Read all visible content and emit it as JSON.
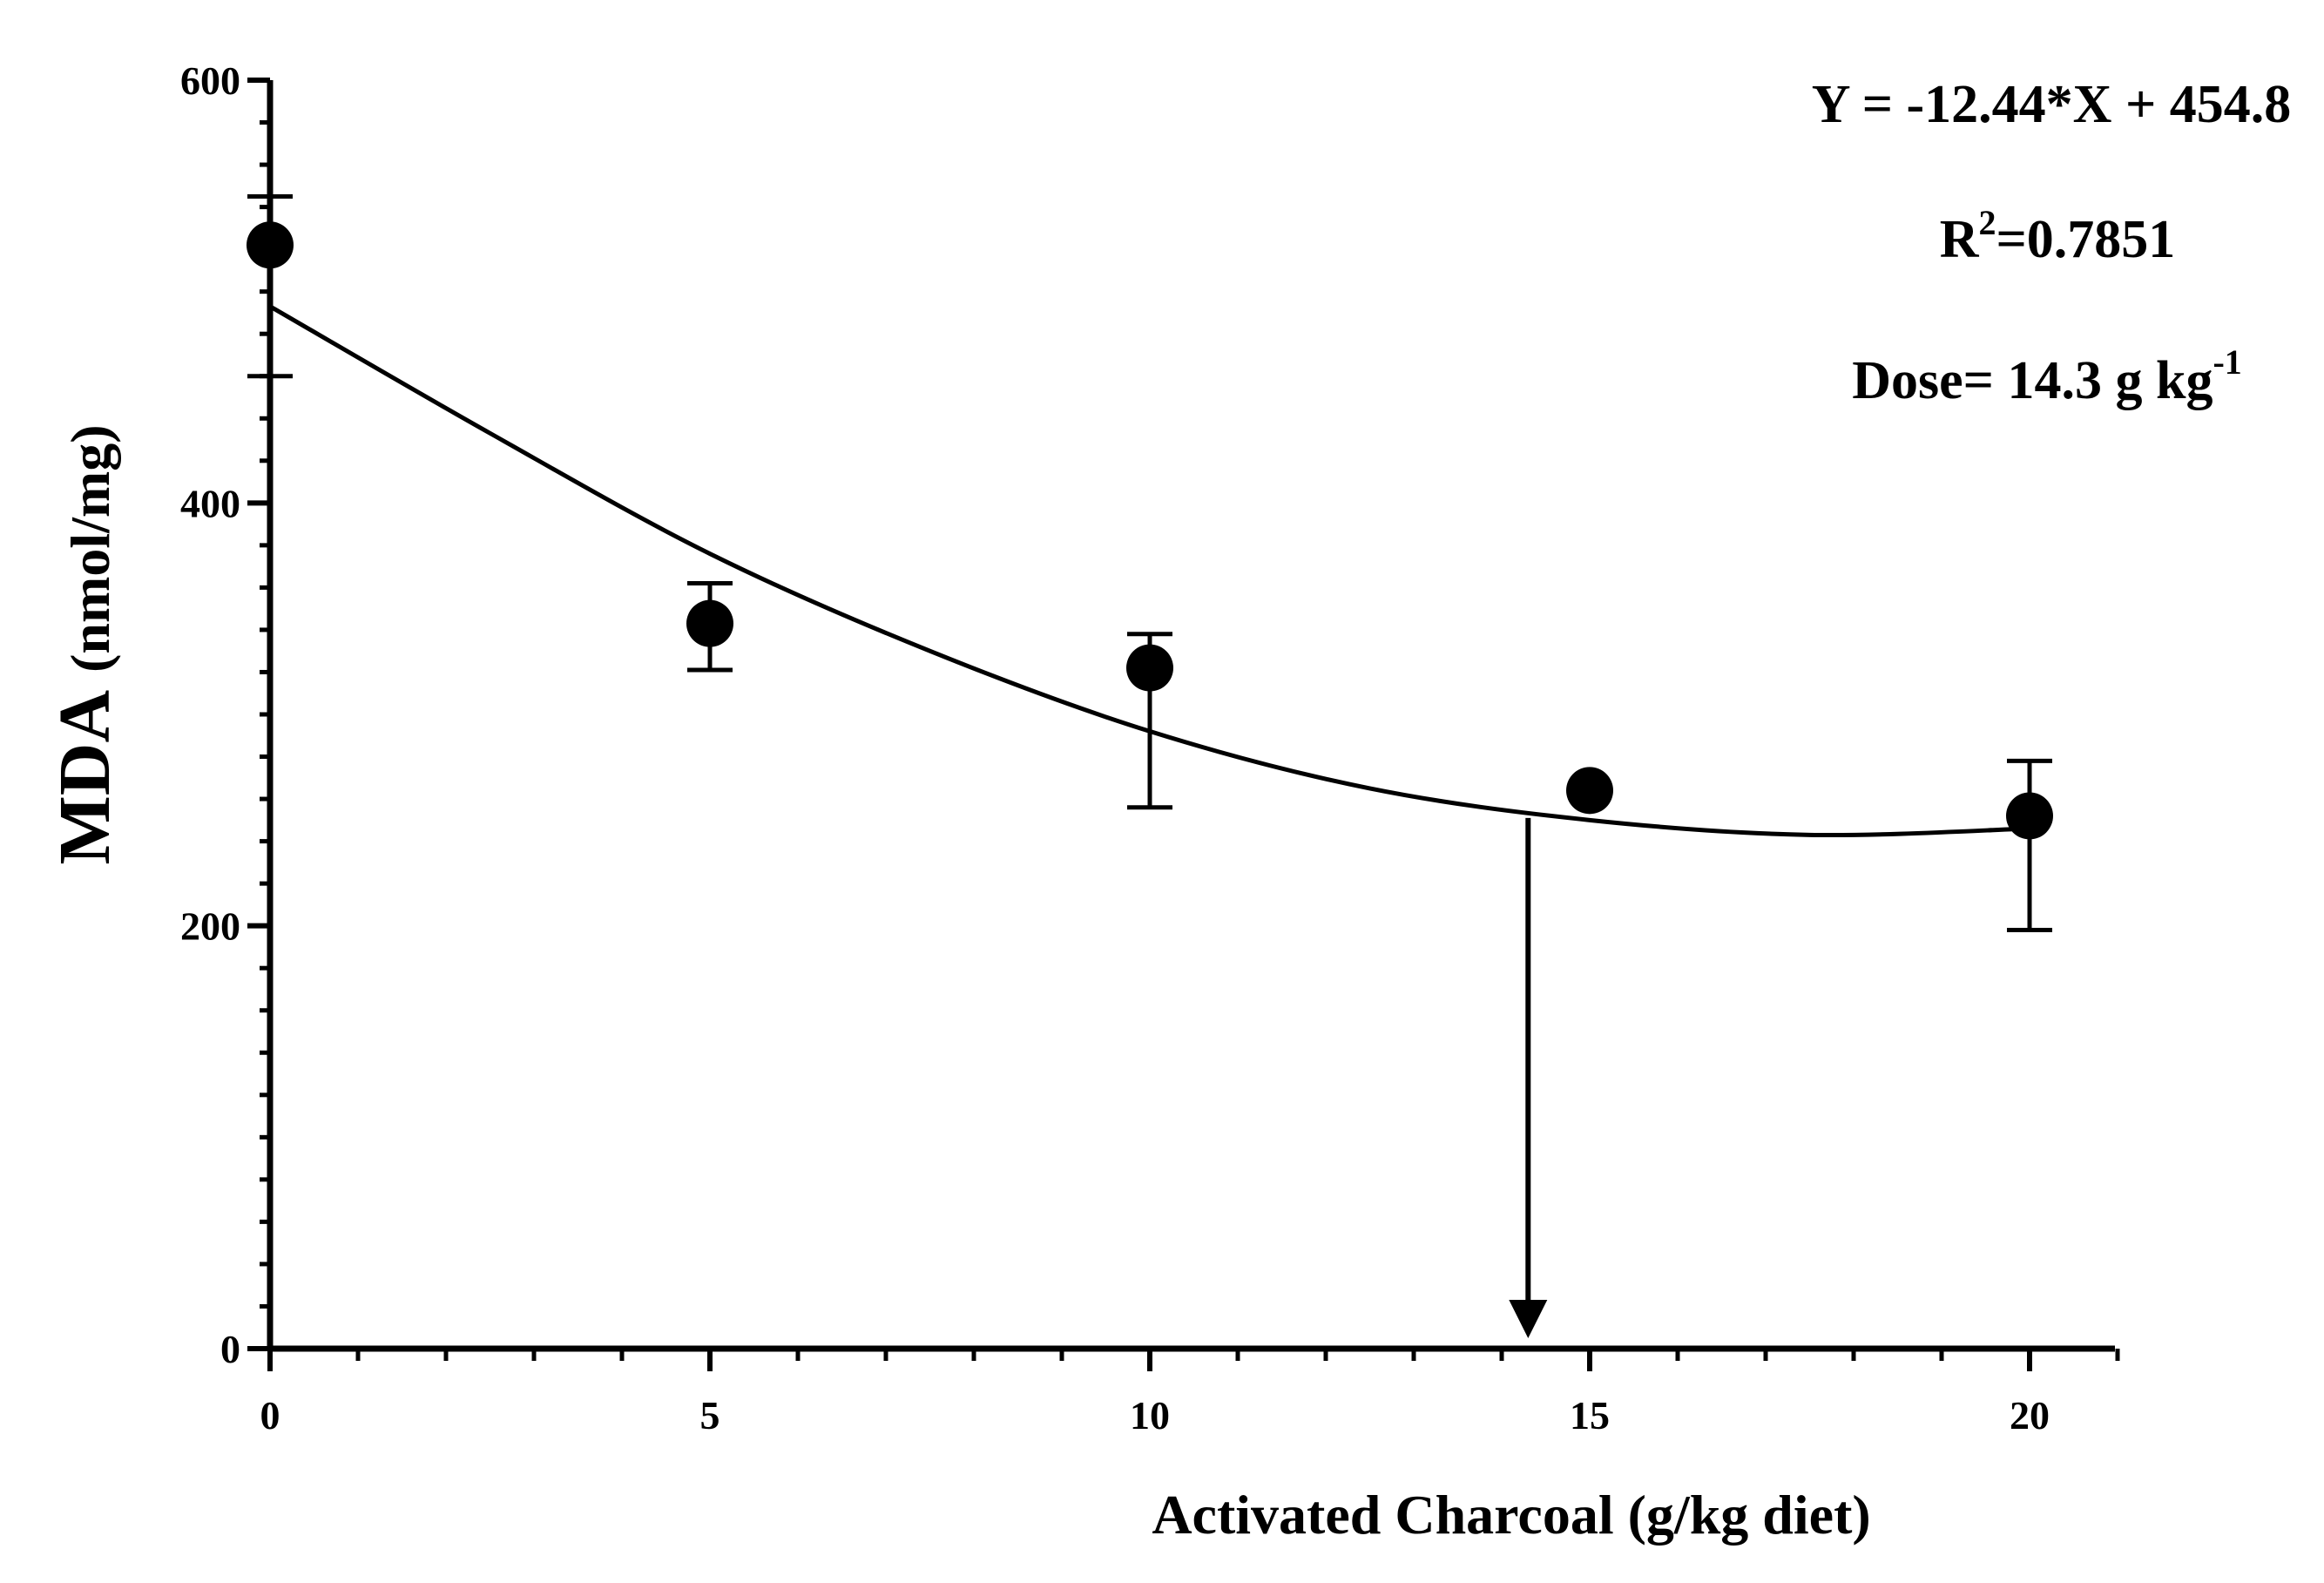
{
  "chart_data": {
    "type": "scatter",
    "title": "",
    "xlabel": "Activated Charcoal (g/kg diet)",
    "ylabel": "MDA",
    "ylabel_unit": "(nmol/mg)",
    "xlim": [
      0,
      21
    ],
    "ylim": [
      0,
      600
    ],
    "x_ticks": [
      0,
      5,
      10,
      15,
      20
    ],
    "y_ticks": [
      0,
      200,
      400,
      600
    ],
    "x_minor_step": 1,
    "y_minor_step": 20,
    "series": [
      {
        "name": "MDA",
        "points": [
          {
            "x": 0,
            "y": 522,
            "err_low": 460,
            "err_high": 545
          },
          {
            "x": 5,
            "y": 343,
            "err_low": 321,
            "err_high": 362
          },
          {
            "x": 10,
            "y": 322,
            "err_low": 256,
            "err_high": 338
          },
          {
            "x": 15,
            "y": 264,
            "err_low": 262,
            "err_high": 266
          },
          {
            "x": 20,
            "y": 252,
            "err_low": 198,
            "err_high": 278
          }
        ]
      }
    ],
    "fit_curve": {
      "type": "quadratic",
      "x": [
        0,
        2.5,
        5,
        7.5,
        10,
        12.5,
        15,
        17.5,
        20
      ],
      "y": [
        493,
        433,
        376,
        330,
        292,
        265,
        250,
        243,
        246
      ]
    },
    "dose_marker": {
      "x": 14.3,
      "y_from": 251,
      "y_to": 0
    },
    "annotations": {
      "equation": "Y = -12.44*X + 454.8",
      "r2_prefix": "R",
      "r2_exp": "2",
      "r2_value": "=0.7851",
      "dose_text": "Dose= 14.3 g kg",
      "dose_exp": "-1"
    }
  }
}
